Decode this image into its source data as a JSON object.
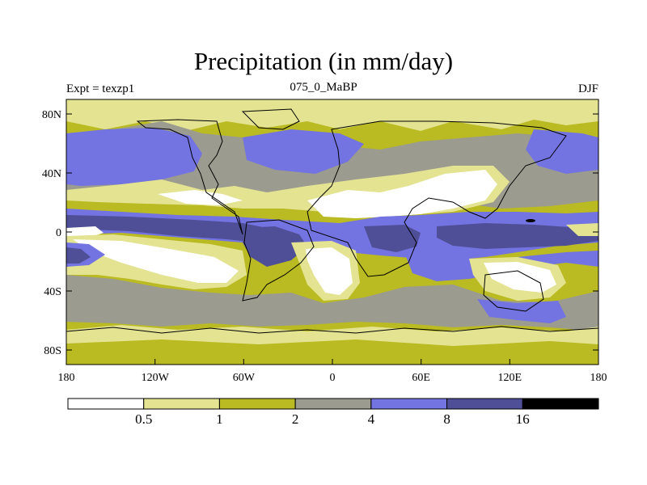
{
  "title": "Precipitation (in mm/day)",
  "left_label": "Expt = texzp1",
  "center_label": "075_0_MaBP",
  "right_label": "DJF",
  "axes": {
    "x_ticks": [
      "180",
      "120W",
      "60W",
      "0",
      "60E",
      "120E",
      "180"
    ],
    "y_ticks": [
      "80N",
      "40N",
      "0",
      "40S",
      "80S"
    ]
  },
  "colorbar": {
    "levels": [
      "0.5",
      "1",
      "2",
      "4",
      "8",
      "16"
    ],
    "colors": [
      "#ffffff",
      "#e3e392",
      "#baba22",
      "#9b9b8f",
      "#7373e1",
      "#4f4f98",
      "#000000"
    ]
  },
  "colors": {
    "white": "#ffffff",
    "light_yellow": "#e3e392",
    "olive": "#baba22",
    "gray": "#9b9b8f",
    "blue": "#7373e1",
    "dark_blue": "#4f4f98",
    "black": "#000000"
  }
}
